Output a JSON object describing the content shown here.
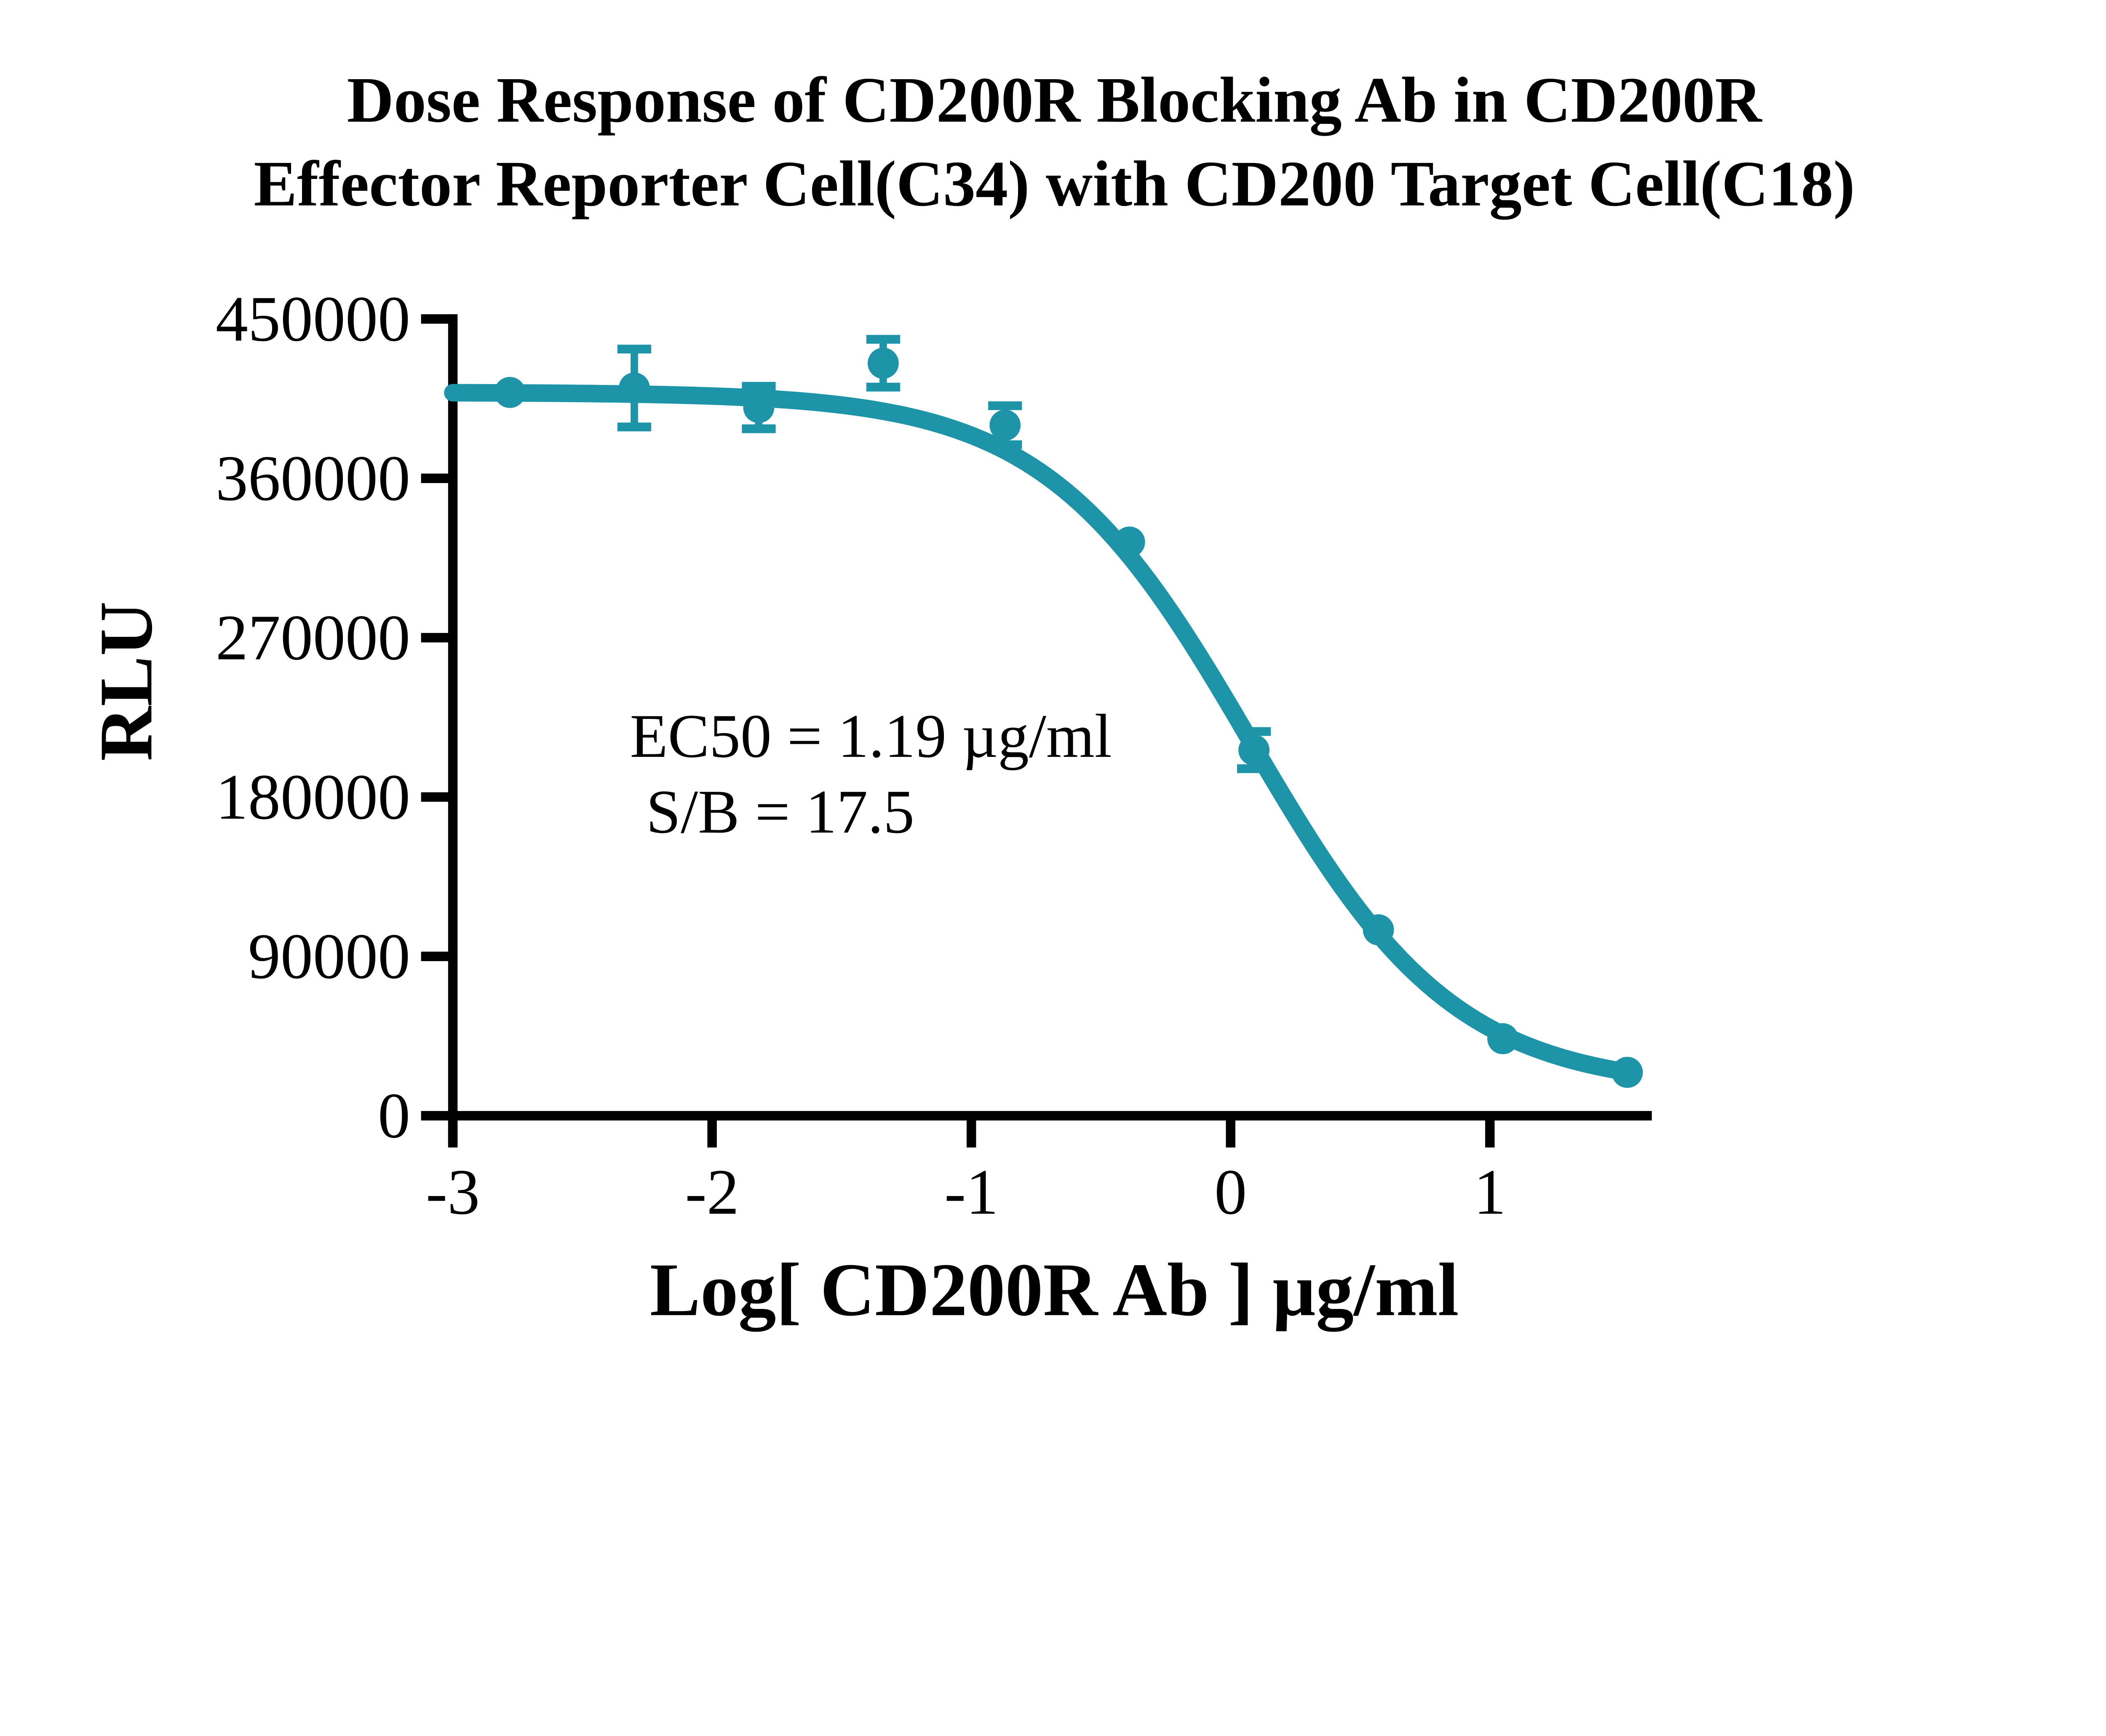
{
  "title": {
    "line1": "Dose Response of CD200R Blocking Ab in CD200R",
    "line2": "Effector Reporter Cell(C34) with CD200 Target Cell(C18)"
  },
  "annotation": {
    "ec50": "EC50 = 1.19 µg/ml",
    "sb": "S/B = 17.5"
  },
  "axes": {
    "x": {
      "title": "Log[ CD200R Ab ] µg/ml",
      "tick_labels": [
        "-3",
        "-2",
        "-1",
        "0",
        "1"
      ],
      "tick_values": [
        -3,
        -2,
        -1,
        0,
        1
      ],
      "min": -3,
      "max": 1.62
    },
    "y": {
      "title": "RLU",
      "tick_labels": [
        "0",
        "90000",
        "180000",
        "270000",
        "360000",
        "450000"
      ],
      "tick_values": [
        0,
        90000,
        180000,
        270000,
        360000,
        450000
      ],
      "min": 0,
      "max": 450000
    }
  },
  "colors": {
    "series": "#1E94A9",
    "axis": "#000000",
    "text": "#000000",
    "background": "#FFFFFF"
  },
  "chart_data": {
    "type": "scatter",
    "title": "Dose Response of CD200R Blocking Ab in CD200R Effector Reporter Cell(C34) with CD200 Target Cell(C18)",
    "xlabel": "Log[ CD200R Ab ] µg/ml",
    "ylabel": "RLU",
    "xlim": [
      -3,
      1.62
    ],
    "ylim": [
      0,
      450000
    ],
    "grid": false,
    "legend_position": "none",
    "series": [
      {
        "name": "CD200R Blocking Ab",
        "color": "#1E94A9",
        "x": [
          -2.78,
          -2.3,
          -1.82,
          -1.34,
          -0.87,
          -0.39,
          0.09,
          0.57,
          1.05,
          1.53
        ],
        "y": [
          408500,
          411000,
          400000,
          425000,
          390000,
          324000,
          206500,
          105000,
          43500,
          24500
        ],
        "y_err": [
          null,
          22000,
          12000,
          13500,
          11000,
          null,
          10500,
          null,
          null,
          null
        ]
      }
    ],
    "fit_curve": {
      "model": "four_parameter_logistic",
      "top": 408500,
      "bottom": 15000,
      "log_ec50": 0.076,
      "hill_slope": -1.1,
      "x_start": -3,
      "x_end": 1.53
    },
    "ec50_ug_ml": 1.19,
    "signal_to_background": 17.5
  }
}
